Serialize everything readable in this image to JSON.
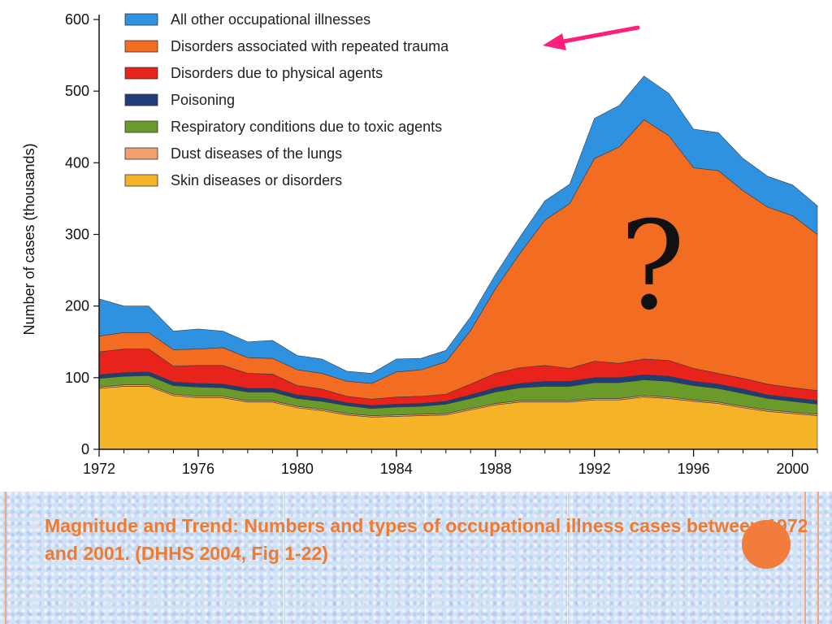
{
  "chart_data": {
    "type": "area",
    "stacked": true,
    "ylabel": "Number of cases (thousands)",
    "xlim": [
      1972,
      2001
    ],
    "ylim": [
      0,
      600
    ],
    "x_ticks": [
      "1972",
      "1976",
      "1980",
      "1984",
      "1988",
      "1992",
      "1996",
      "2000"
    ],
    "y_ticks": [
      "0",
      "100",
      "200",
      "300",
      "400",
      "500",
      "600"
    ],
    "legend_position": "top-left",
    "grid": false,
    "x": [
      1972,
      1973,
      1974,
      1975,
      1976,
      1977,
      1978,
      1979,
      1980,
      1981,
      1982,
      1983,
      1984,
      1985,
      1986,
      1987,
      1988,
      1989,
      1990,
      1991,
      1992,
      1993,
      1994,
      1995,
      1996,
      1997,
      1998,
      1999,
      2000,
      2001
    ],
    "series": [
      {
        "name": "Skin diseases or disorders",
        "color": "#f5b428",
        "values": [
          85,
          88,
          88,
          75,
          72,
          72,
          66,
          66,
          58,
          54,
          48,
          45,
          46,
          47,
          48,
          55,
          62,
          66,
          66,
          66,
          69,
          69,
          73,
          71,
          67,
          64,
          58,
          53,
          50,
          47
        ]
      },
      {
        "name": "Dust diseases of the lungs",
        "color": "#f0a070",
        "values": [
          2,
          2,
          2,
          2,
          2,
          2,
          2,
          2,
          2,
          2,
          2,
          2,
          2,
          2,
          2,
          2,
          2,
          2,
          2,
          2,
          2,
          2,
          2,
          2,
          2,
          2,
          2,
          2,
          2,
          2
        ]
      },
      {
        "name": "Respiratory conditions due to toxic agents",
        "color": "#6a9a2a",
        "values": [
          12,
          12,
          13,
          12,
          13,
          12,
          12,
          12,
          11,
          11,
          11,
          10,
          11,
          11,
          13,
          14,
          16,
          18,
          20,
          20,
          22,
          22,
          22,
          22,
          20,
          19,
          18,
          16,
          15,
          14
        ]
      },
      {
        "name": "Poisoning",
        "color": "#1f3e78",
        "values": [
          5,
          5,
          5,
          5,
          5,
          5,
          5,
          5,
          5,
          5,
          4,
          4,
          4,
          4,
          4,
          5,
          6,
          6,
          7,
          7,
          7,
          7,
          7,
          7,
          6,
          6,
          6,
          5,
          5,
          5
        ]
      },
      {
        "name": "Disorders due to physical agents",
        "color": "#e8231c",
        "values": [
          32,
          33,
          32,
          22,
          25,
          26,
          21,
          20,
          13,
          12,
          9,
          9,
          10,
          10,
          10,
          15,
          20,
          22,
          22,
          18,
          23,
          20,
          22,
          22,
          18,
          15,
          15,
          15,
          14,
          14
        ]
      },
      {
        "name": "Disorders associated with repeated trauma",
        "color": "#f26c22",
        "values": [
          22,
          23,
          23,
          23,
          23,
          25,
          22,
          22,
          22,
          22,
          21,
          22,
          35,
          37,
          45,
          75,
          118,
          160,
          203,
          230,
          283,
          302,
          334,
          314,
          280,
          283,
          262,
          247,
          240,
          218
        ]
      },
      {
        "name": "All other occupational illnesses",
        "color": "#2e92e0",
        "values": [
          52,
          37,
          37,
          26,
          28,
          23,
          22,
          25,
          20,
          20,
          14,
          14,
          18,
          16,
          16,
          19,
          20,
          23,
          27,
          27,
          56,
          58,
          61,
          59,
          54,
          53,
          45,
          43,
          43,
          40
        ]
      }
    ]
  },
  "annotations": {
    "question_mark": "?"
  },
  "caption": "Magnitude and Trend:  Numbers and types of occupational illness cases between 1972 and 2001.  (DHHS 2004, Fig 1-22)"
}
